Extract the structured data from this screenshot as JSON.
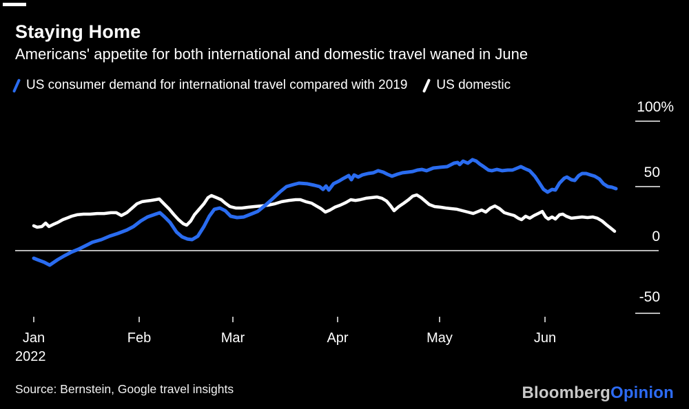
{
  "header": {
    "title": "Staying Home",
    "subtitle": "Americans' appetite for both international and domestic travel waned in June"
  },
  "legend": {
    "international_label": "US consumer demand for international travel compared with 2019",
    "domestic_label": "US domestic"
  },
  "colors": {
    "international": "#2a6cf0",
    "domestic": "#ffffff",
    "axis": "#b9b9b9",
    "background": "#000000",
    "logo_bloomberg": "#c9c9c9",
    "logo_opinion": "#2d6bf3"
  },
  "chart_data": {
    "type": "line",
    "title": "Staying Home",
    "subtitle": "Americans' appetite for both international and domestic travel waned in June",
    "x_unit": "days since Jan 1, 2022",
    "x_axis": {
      "labels": [
        "Jan",
        "Feb",
        "Mar",
        "Apr",
        "May",
        "Jun"
      ],
      "year_label": "2022",
      "range_days": [
        0,
        174
      ]
    },
    "y_axis": {
      "labels": [
        "100%",
        "50",
        "0",
        "-50"
      ],
      "values": [
        100,
        50,
        0,
        -50
      ],
      "unit": "%",
      "baseline": 0,
      "grid": "baseline-only",
      "side": "right"
    },
    "legend_position": "top",
    "series": [
      {
        "name": "US consumer demand for international travel compared with 2019",
        "color": "#2a6cf0",
        "points": [
          [
            0,
            -5.9
          ],
          [
            1,
            -7
          ],
          [
            3.1,
            -9.1
          ],
          [
            4.7,
            -11.3
          ],
          [
            7.1,
            -7
          ],
          [
            9.2,
            -3.8
          ],
          [
            11.2,
            -1.1
          ],
          [
            13.2,
            1.1
          ],
          [
            15.3,
            3.8
          ],
          [
            17.3,
            6.5
          ],
          [
            20,
            8.6
          ],
          [
            22.4,
            11.3
          ],
          [
            24.8,
            13.4
          ],
          [
            27.5,
            16.1
          ],
          [
            29.5,
            18.8
          ],
          [
            31.6,
            23.1
          ],
          [
            33.6,
            26.3
          ],
          [
            36,
            28.5
          ],
          [
            37.3,
            29.6
          ],
          [
            38.7,
            26.3
          ],
          [
            40.3,
            22
          ],
          [
            42.2,
            14.5
          ],
          [
            43.8,
            10.8
          ],
          [
            45.4,
            9.1
          ],
          [
            46.8,
            8.6
          ],
          [
            48.5,
            11.3
          ],
          [
            50.3,
            18.8
          ],
          [
            51.9,
            26.9
          ],
          [
            53.4,
            32.3
          ],
          [
            55,
            33.3
          ],
          [
            56.6,
            31.2
          ],
          [
            58.2,
            26.9
          ],
          [
            60.1,
            25.8
          ],
          [
            62.1,
            26.3
          ],
          [
            64.2,
            28.5
          ],
          [
            66.2,
            30.6
          ],
          [
            68.2,
            34.9
          ],
          [
            70.3,
            39.8
          ],
          [
            72.7,
            45.7
          ],
          [
            74.7,
            50
          ],
          [
            76.8,
            51.6
          ],
          [
            78.4,
            52.7
          ],
          [
            80.9,
            52.2
          ],
          [
            82.9,
            51.1
          ],
          [
            84.5,
            50
          ],
          [
            85.5,
            47.8
          ],
          [
            86.4,
            50.5
          ],
          [
            87.2,
            47.3
          ],
          [
            88.6,
            52.2
          ],
          [
            90.2,
            54.3
          ],
          [
            91.6,
            56.5
          ],
          [
            93.1,
            58.6
          ],
          [
            93.9,
            55.4
          ],
          [
            94.7,
            59.1
          ],
          [
            95.9,
            57.5
          ],
          [
            97.1,
            59.1
          ],
          [
            98.8,
            60.2
          ],
          [
            100.4,
            60.8
          ],
          [
            101.8,
            62.4
          ],
          [
            103.3,
            61.3
          ],
          [
            104.5,
            59.7
          ],
          [
            105.9,
            58.1
          ],
          [
            107.5,
            59.7
          ],
          [
            109,
            60.8
          ],
          [
            110.6,
            61.3
          ],
          [
            112,
            61.8
          ],
          [
            113.4,
            62.9
          ],
          [
            114.7,
            63.4
          ],
          [
            116.1,
            62.4
          ],
          [
            118.1,
            64.5
          ],
          [
            120.2,
            65.1
          ],
          [
            122.2,
            65.6
          ],
          [
            124.2,
            68.3
          ],
          [
            125.3,
            68.8
          ],
          [
            125.9,
            67.2
          ],
          [
            126.9,
            69.9
          ],
          [
            128.3,
            68.3
          ],
          [
            129.7,
            71
          ],
          [
            130.8,
            69.9
          ],
          [
            131.8,
            67.7
          ],
          [
            133,
            65.6
          ],
          [
            134.4,
            62.9
          ],
          [
            135.4,
            62.4
          ],
          [
            136.9,
            63.4
          ],
          [
            138.5,
            62.4
          ],
          [
            140.1,
            62.9
          ],
          [
            141.5,
            62.9
          ],
          [
            143,
            64.5
          ],
          [
            144,
            65.6
          ],
          [
            145.2,
            64
          ],
          [
            146.6,
            62.4
          ],
          [
            148.1,
            58.1
          ],
          [
            149.5,
            52.7
          ],
          [
            150.7,
            47.8
          ],
          [
            151.9,
            45.7
          ],
          [
            153.2,
            47.8
          ],
          [
            154.2,
            47.3
          ],
          [
            155.4,
            52.7
          ],
          [
            156.8,
            56.5
          ],
          [
            157.6,
            57.5
          ],
          [
            158.9,
            55.4
          ],
          [
            159.9,
            54.8
          ],
          [
            161.1,
            58.6
          ],
          [
            162.1,
            60.2
          ],
          [
            163.3,
            60.2
          ],
          [
            164.6,
            59.1
          ],
          [
            165.8,
            58.1
          ],
          [
            167.2,
            55.9
          ],
          [
            168.4,
            52.2
          ],
          [
            169.7,
            50
          ],
          [
            170.9,
            49.5
          ],
          [
            172.1,
            48.4
          ]
        ]
      },
      {
        "name": "US domestic",
        "color": "#ffffff",
        "points": [
          [
            0,
            19.4
          ],
          [
            1,
            18.3
          ],
          [
            2.4,
            18.8
          ],
          [
            3.5,
            21.5
          ],
          [
            4.5,
            18.8
          ],
          [
            5.7,
            20.4
          ],
          [
            7.1,
            22
          ],
          [
            8.6,
            24.2
          ],
          [
            10.2,
            25.8
          ],
          [
            11.2,
            26.9
          ],
          [
            12.8,
            28
          ],
          [
            14.7,
            28.5
          ],
          [
            16.7,
            28.5
          ],
          [
            18.7,
            29
          ],
          [
            20.8,
            29
          ],
          [
            22.8,
            29.6
          ],
          [
            24.4,
            29.6
          ],
          [
            25.9,
            27.4
          ],
          [
            27.5,
            29.6
          ],
          [
            29.1,
            33.3
          ],
          [
            30.5,
            36.6
          ],
          [
            32,
            38.2
          ],
          [
            33.2,
            38.7
          ],
          [
            34.6,
            39.2
          ],
          [
            36,
            39.8
          ],
          [
            37.1,
            40.3
          ],
          [
            38.7,
            36
          ],
          [
            40.1,
            32.3
          ],
          [
            41.3,
            28.5
          ],
          [
            42.8,
            24.2
          ],
          [
            44.2,
            21
          ],
          [
            45.2,
            19.9
          ],
          [
            46.4,
            23.1
          ],
          [
            47.5,
            28
          ],
          [
            48.9,
            32.3
          ],
          [
            50.3,
            36.6
          ],
          [
            51.5,
            41.4
          ],
          [
            52.5,
            43
          ],
          [
            54,
            41.4
          ],
          [
            55.4,
            39.8
          ],
          [
            56.6,
            37.1
          ],
          [
            58,
            34.4
          ],
          [
            59.7,
            33.3
          ],
          [
            61.5,
            33.3
          ],
          [
            63.5,
            33.9
          ],
          [
            65.2,
            34.4
          ],
          [
            67.2,
            34.9
          ],
          [
            69.2,
            35.5
          ],
          [
            71.3,
            36.6
          ],
          [
            73.3,
            38.2
          ],
          [
            75.4,
            39.2
          ],
          [
            77.4,
            39.8
          ],
          [
            78.8,
            39.8
          ],
          [
            80.4,
            38.2
          ],
          [
            82.1,
            37.1
          ],
          [
            83.5,
            34.9
          ],
          [
            84.9,
            32.8
          ],
          [
            86.2,
            30.1
          ],
          [
            87.6,
            31.7
          ],
          [
            89,
            33.9
          ],
          [
            90.6,
            35.5
          ],
          [
            92.3,
            37.6
          ],
          [
            93.7,
            39.8
          ],
          [
            95.1,
            39.2
          ],
          [
            96.5,
            39.8
          ],
          [
            98.2,
            40.9
          ],
          [
            99.8,
            41.4
          ],
          [
            101.4,
            41.9
          ],
          [
            102.9,
            40.9
          ],
          [
            104.3,
            38.7
          ],
          [
            105.5,
            34.9
          ],
          [
            106.5,
            31.2
          ],
          [
            107.9,
            34.4
          ],
          [
            109.4,
            37.1
          ],
          [
            110.8,
            39.8
          ],
          [
            112,
            42.5
          ],
          [
            113.2,
            43.5
          ],
          [
            114.5,
            41.4
          ],
          [
            115.7,
            38.7
          ],
          [
            116.9,
            36
          ],
          [
            118.5,
            34.4
          ],
          [
            120.2,
            33.9
          ],
          [
            121.8,
            33.3
          ],
          [
            123.4,
            32.8
          ],
          [
            125.1,
            32.3
          ],
          [
            126.7,
            31.2
          ],
          [
            128.3,
            30.1
          ],
          [
            129.9,
            29
          ],
          [
            131.4,
            30.6
          ],
          [
            132.4,
            31.7
          ],
          [
            133.6,
            30.1
          ],
          [
            135,
            33.3
          ],
          [
            136.3,
            34.9
          ],
          [
            137.7,
            32.8
          ],
          [
            139.1,
            29.6
          ],
          [
            140.5,
            28.5
          ],
          [
            142,
            27.4
          ],
          [
            143.2,
            25.3
          ],
          [
            144.2,
            24.2
          ],
          [
            145.4,
            26.9
          ],
          [
            146.6,
            25.3
          ],
          [
            147.9,
            27.4
          ],
          [
            149.1,
            29
          ],
          [
            150.3,
            30.6
          ],
          [
            151.3,
            26.3
          ],
          [
            152.1,
            24.7
          ],
          [
            153.2,
            26.3
          ],
          [
            154.2,
            24.7
          ],
          [
            155.4,
            28
          ],
          [
            156.4,
            28.5
          ],
          [
            157.4,
            26.9
          ],
          [
            158.9,
            25.3
          ],
          [
            160.5,
            25.8
          ],
          [
            162.1,
            26.3
          ],
          [
            163.7,
            25.8
          ],
          [
            165.2,
            26.3
          ],
          [
            166.6,
            25.3
          ],
          [
            168,
            23.1
          ],
          [
            169.2,
            20.4
          ],
          [
            170.5,
            17.7
          ],
          [
            171.7,
            15.1
          ]
        ]
      }
    ]
  },
  "footer": {
    "source": "Source: Bernstein, Google travel insights",
    "logo_bloomberg": "Bloomberg",
    "logo_opinion": "Opinion"
  }
}
